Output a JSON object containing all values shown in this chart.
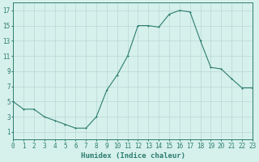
{
  "x": [
    0,
    1,
    2,
    3,
    4,
    5,
    6,
    7,
    8,
    9,
    10,
    11,
    12,
    13,
    14,
    15,
    16,
    17,
    18,
    19,
    20,
    21,
    22,
    23
  ],
  "y": [
    5,
    4,
    4,
    3,
    2.5,
    2,
    1.5,
    1.5,
    3,
    6.5,
    8.5,
    11,
    15,
    15,
    14.8,
    16.5,
    17,
    16.8,
    13,
    9.5,
    9.3,
    8,
    6.8,
    6.8
  ],
  "line_color": "#2d7d6f",
  "marker_color": "#2d7d6f",
  "bg_color": "#d6f0ec",
  "grid_color_major": "#b8d8d4",
  "grid_color_minor": "#c8e5e1",
  "xlabel": "Humidex (Indice chaleur)",
  "xlim": [
    0,
    23
  ],
  "ylim": [
    0,
    18
  ],
  "xtick_labels": [
    "0",
    "1",
    "2",
    "3",
    "4",
    "5",
    "6",
    "7",
    "8",
    "9",
    "10",
    "11",
    "12",
    "13",
    "14",
    "15",
    "16",
    "17",
    "18",
    "19",
    "20",
    "21",
    "22",
    "23"
  ],
  "ytick_values": [
    1,
    3,
    5,
    7,
    9,
    11,
    13,
    15,
    17
  ],
  "xlabel_fontsize": 6.5,
  "tick_fontsize": 5.5,
  "linewidth": 0.8,
  "markersize": 2.0
}
